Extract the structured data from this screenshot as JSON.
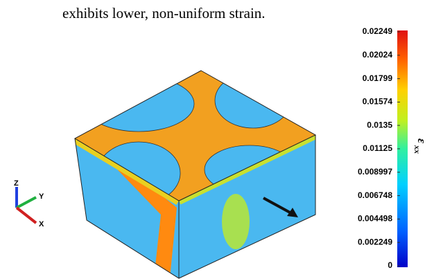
{
  "caption": "exhibits lower, non-uniform strain.",
  "colorbar": {
    "label": "ε",
    "label_sub": "xx",
    "ticks": [
      0.02249,
      0.02024,
      0.01799,
      0.01574,
      0.0135,
      0.01125,
      0.008997,
      0.006748,
      0.004498,
      0.002249,
      0
    ]
  },
  "triad": {
    "z": "Z",
    "y": "Y",
    "x": "X"
  }
}
